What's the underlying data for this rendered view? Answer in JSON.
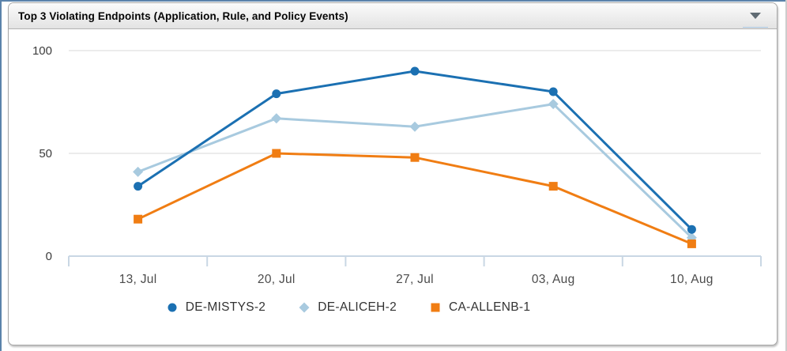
{
  "widget": {
    "title": "Top 3 Violating Endpoints (Application, Rule, and Policy Events)",
    "menu_icon": "dropdown-arrow"
  },
  "colors": {
    "frame": "#5b83ab",
    "header_gradient_top": "#fbfbfb",
    "header_gradient_bottom": "#e3e3e3",
    "gridline": "#d8d8d8",
    "axis_line": "#c9d7e4",
    "y_label": "#3c3c3c",
    "x_label": "#4b4b4b",
    "legend_text": "#333333",
    "series_de_mistys_2": "#1b70b2",
    "series_de_aliceh_2": "#a8cadf",
    "series_ca_allenb_1": "#f07d13"
  },
  "chart_data": {
    "type": "line",
    "title": "Top 3 Violating Endpoints (Application, Rule, and Policy Events)",
    "categories": [
      "13, Jul",
      "20, Jul",
      "27, Jul",
      "03, Aug",
      "10, Aug"
    ],
    "series": [
      {
        "name": "DE-MISTYS-2",
        "marker": "circle",
        "color": "#1b70b2",
        "values": [
          34,
          79,
          90,
          80,
          13
        ]
      },
      {
        "name": "DE-ALICEH-2",
        "marker": "diamond",
        "color": "#a8cadf",
        "values": [
          41,
          67,
          63,
          74,
          9
        ]
      },
      {
        "name": "CA-ALLENB-1",
        "marker": "square",
        "color": "#f07d13",
        "values": [
          18,
          50,
          48,
          34,
          6
        ]
      }
    ],
    "ylim": [
      0,
      100
    ],
    "yticks": [
      0,
      50,
      100
    ],
    "grid": true,
    "legend_position": "bottom"
  }
}
